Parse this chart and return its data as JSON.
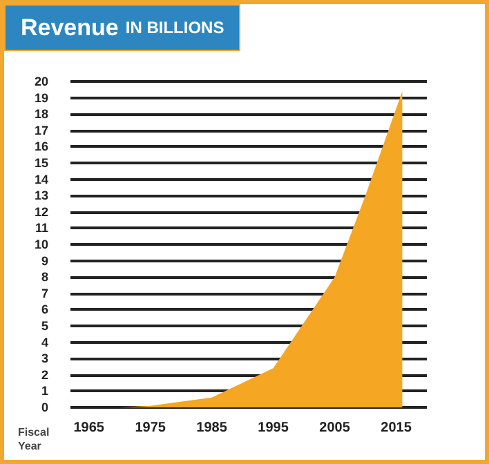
{
  "chart_data": {
    "type": "area",
    "title": "Revenue IN BILLIONS",
    "xlabel": "Fiscal Year",
    "color": "#f5a623",
    "x": [
      1970,
      1975,
      1985,
      1995,
      2005,
      2010,
      2016
    ],
    "values": [
      0,
      0.1,
      0.6,
      2.4,
      8.0,
      13.0,
      19.4
    ],
    "xlim": [
      1962,
      2020
    ],
    "xticks": [
      1965,
      1975,
      1985,
      1995,
      2005,
      2015
    ],
    "ylim": [
      0,
      20
    ],
    "yticks": [
      0,
      1,
      2,
      3,
      4,
      5,
      6,
      7,
      8,
      9,
      10,
      11,
      12,
      13,
      14,
      15,
      16,
      17,
      18,
      19,
      20
    ],
    "grid": "y"
  }
}
